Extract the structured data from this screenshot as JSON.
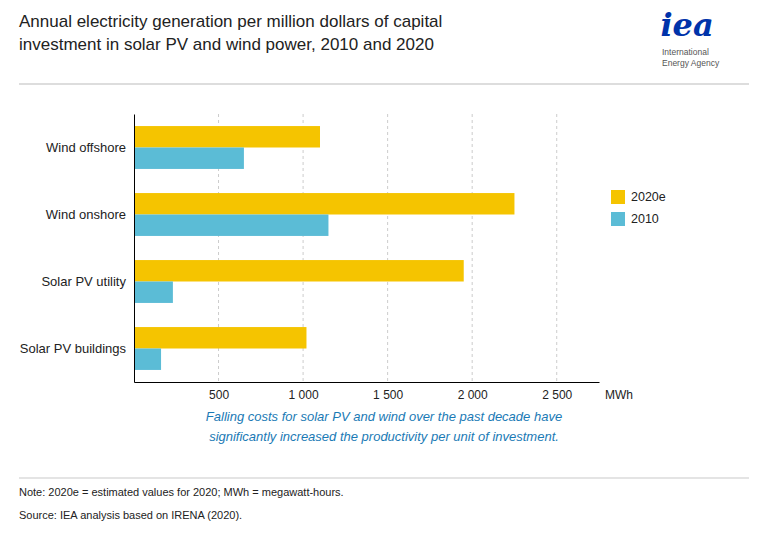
{
  "chart_data": {
    "type": "bar",
    "orientation": "horizontal",
    "title": "Annual electricity generation per million dollars of capital\ninvestment in solar PV and wind power, 2010 and 2020",
    "subtitle": "Falling costs for solar PV and wind over the past decade have\nsignificantly increased the productivity per unit of investment.",
    "xlabel": "MWh",
    "annotations": [
      "iea",
      "International\nEnergy Agency",
      "Note: 2020e = estimated values for 2020; MWh = megawatt-hours.",
      "Source: IEA analysis based on IRENA (2020)."
    ],
    "categories": [
      "Solar PV buildings",
      "Solar PV utility",
      "Wind onshore",
      "Wind offshore"
    ],
    "series": [
      {
        "name": "2020e",
        "color": "#F5C400",
        "values": [
          1020,
          1950,
          2250,
          1100
        ]
      },
      {
        "name": "2010",
        "color": "#5BBCD6",
        "values": [
          160,
          230,
          1150,
          650
        ]
      }
    ],
    "xlim": [
      0,
      2750
    ],
    "xticks": [
      {
        "value": 0,
        "label": null
      },
      500,
      {
        "value": 1000,
        "label": "1 000"
      },
      {
        "value": 1500,
        "label": "1 500"
      },
      {
        "value": 2000,
        "label": "2 000"
      },
      {
        "value": 2500,
        "label": "2 500"
      }
    ],
    "grid": true,
    "legend": "right"
  }
}
